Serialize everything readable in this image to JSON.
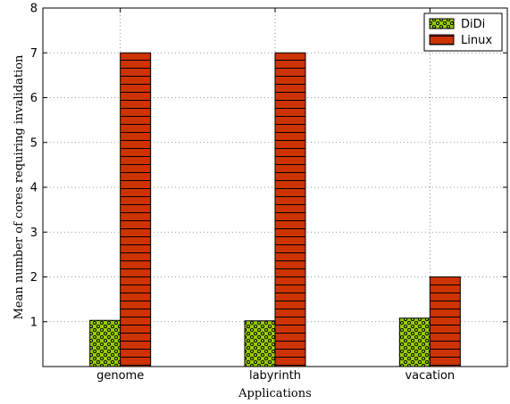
{
  "chart_data": {
    "type": "bar",
    "title": "",
    "xlabel": "Applications",
    "ylabel": "Mean number of cores requiring invalidation",
    "categories": [
      "genome",
      "labyrinth",
      "vacation"
    ],
    "series": [
      {
        "name": "DiDi",
        "values": [
          1.03,
          1.02,
          1.08
        ],
        "color": "#99cc00",
        "hatch": "dots"
      },
      {
        "name": "Linux",
        "values": [
          7,
          7,
          2
        ],
        "color": "#cc3300",
        "hatch": "horizontal-lines"
      }
    ],
    "ylim": [
      0,
      8
    ],
    "yticks": [
      1,
      2,
      3,
      4,
      5,
      6,
      7,
      8
    ],
    "grid": true,
    "legend_position": "top-right"
  }
}
